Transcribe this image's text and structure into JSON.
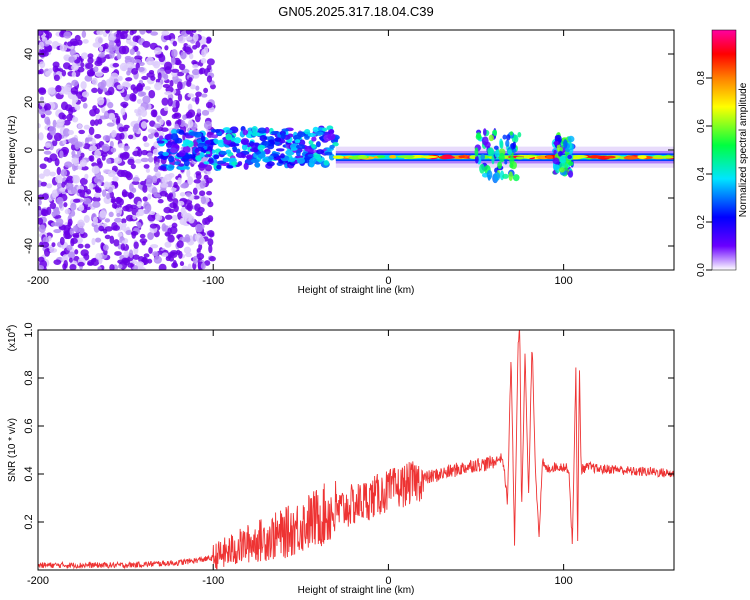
{
  "figure_title": "GN05.2025.317.18.04.C39",
  "chart_data": [
    {
      "type": "heatmap",
      "title": "GN05.2025.317.18.04.C39",
      "xlabel": "Height of straight line (km)",
      "ylabel": "Frequency (Hz)",
      "xlim": [
        -200,
        163
      ],
      "ylim": [
        -50,
        50
      ],
      "x_ticks": [
        -200,
        -100,
        0,
        100
      ],
      "y_ticks": [
        40,
        20,
        0,
        -20,
        -40
      ],
      "grid": false,
      "colorbar": {
        "label": "Normalized spectral amplitude",
        "range": [
          0,
          1
        ],
        "ticks": [
          0.0,
          0.2,
          0.4,
          0.6,
          0.8
        ],
        "colors": [
          "#ffffff",
          "#6a00ff",
          "#0000ff",
          "#00e5ff",
          "#00ff40",
          "#ffff00",
          "#ff8000",
          "#ff0000",
          "#ff00a0"
        ]
      },
      "regions": [
        {
          "name": "noise",
          "x_range": [
            -200,
            -100
          ],
          "freq_range": [
            -50,
            50
          ],
          "amplitude": 0.12
        },
        {
          "name": "onset",
          "x_range": [
            -130,
            -30
          ],
          "freq_center": 0,
          "freq_halfwidth": 8,
          "amplitude": 0.35
        },
        {
          "name": "narrow-line",
          "x_range": [
            -30,
            163
          ],
          "freq_center": -3,
          "freq_halfwidth": 2,
          "amplitude": 0.85
        },
        {
          "name": "burst-1",
          "x_range": [
            50,
            75
          ],
          "freq_center": -2,
          "freq_halfwidth": 10,
          "amplitude": 0.5
        },
        {
          "name": "burst-2",
          "x_range": [
            95,
            105
          ],
          "freq_center": -2,
          "freq_halfwidth": 8,
          "amplitude": 0.5
        }
      ]
    },
    {
      "type": "line",
      "xlabel": "Height of straight line (km)",
      "ylabel": "SNR (10 * v/v)",
      "y_multiplier": "(x10",
      "y_multiplier_exp": "4",
      "xlim": [
        -200,
        163
      ],
      "ylim": [
        0,
        1.0
      ],
      "x_ticks": [
        -200,
        -100,
        0,
        100
      ],
      "y_ticks": [
        0.2,
        0.4,
        0.6,
        0.8,
        1.0
      ],
      "grid": false,
      "series": [
        {
          "name": "SNR",
          "color": "#ee3333",
          "x": [
            -200,
            -150,
            -120,
            -100,
            -90,
            -80,
            -60,
            -40,
            -20,
            0,
            20,
            40,
            50,
            55,
            60,
            65,
            66,
            68,
            70,
            72,
            74,
            75,
            76,
            78,
            80,
            82,
            84,
            86,
            88,
            90,
            95,
            100,
            103,
            105,
            107,
            108,
            109,
            110,
            115,
            120,
            130,
            140,
            150,
            163
          ],
          "y": [
            0.02,
            0.02,
            0.03,
            0.05,
            0.08,
            0.11,
            0.15,
            0.22,
            0.27,
            0.33,
            0.38,
            0.42,
            0.44,
            0.44,
            0.45,
            0.47,
            0.42,
            0.28,
            0.9,
            0.1,
            0.95,
            1.0,
            0.25,
            0.9,
            0.3,
            0.95,
            0.4,
            0.15,
            0.45,
            0.42,
            0.43,
            0.43,
            0.42,
            0.1,
            0.85,
            0.08,
            0.85,
            0.42,
            0.43,
            0.42,
            0.42,
            0.41,
            0.41,
            0.4
          ]
        }
      ]
    }
  ]
}
